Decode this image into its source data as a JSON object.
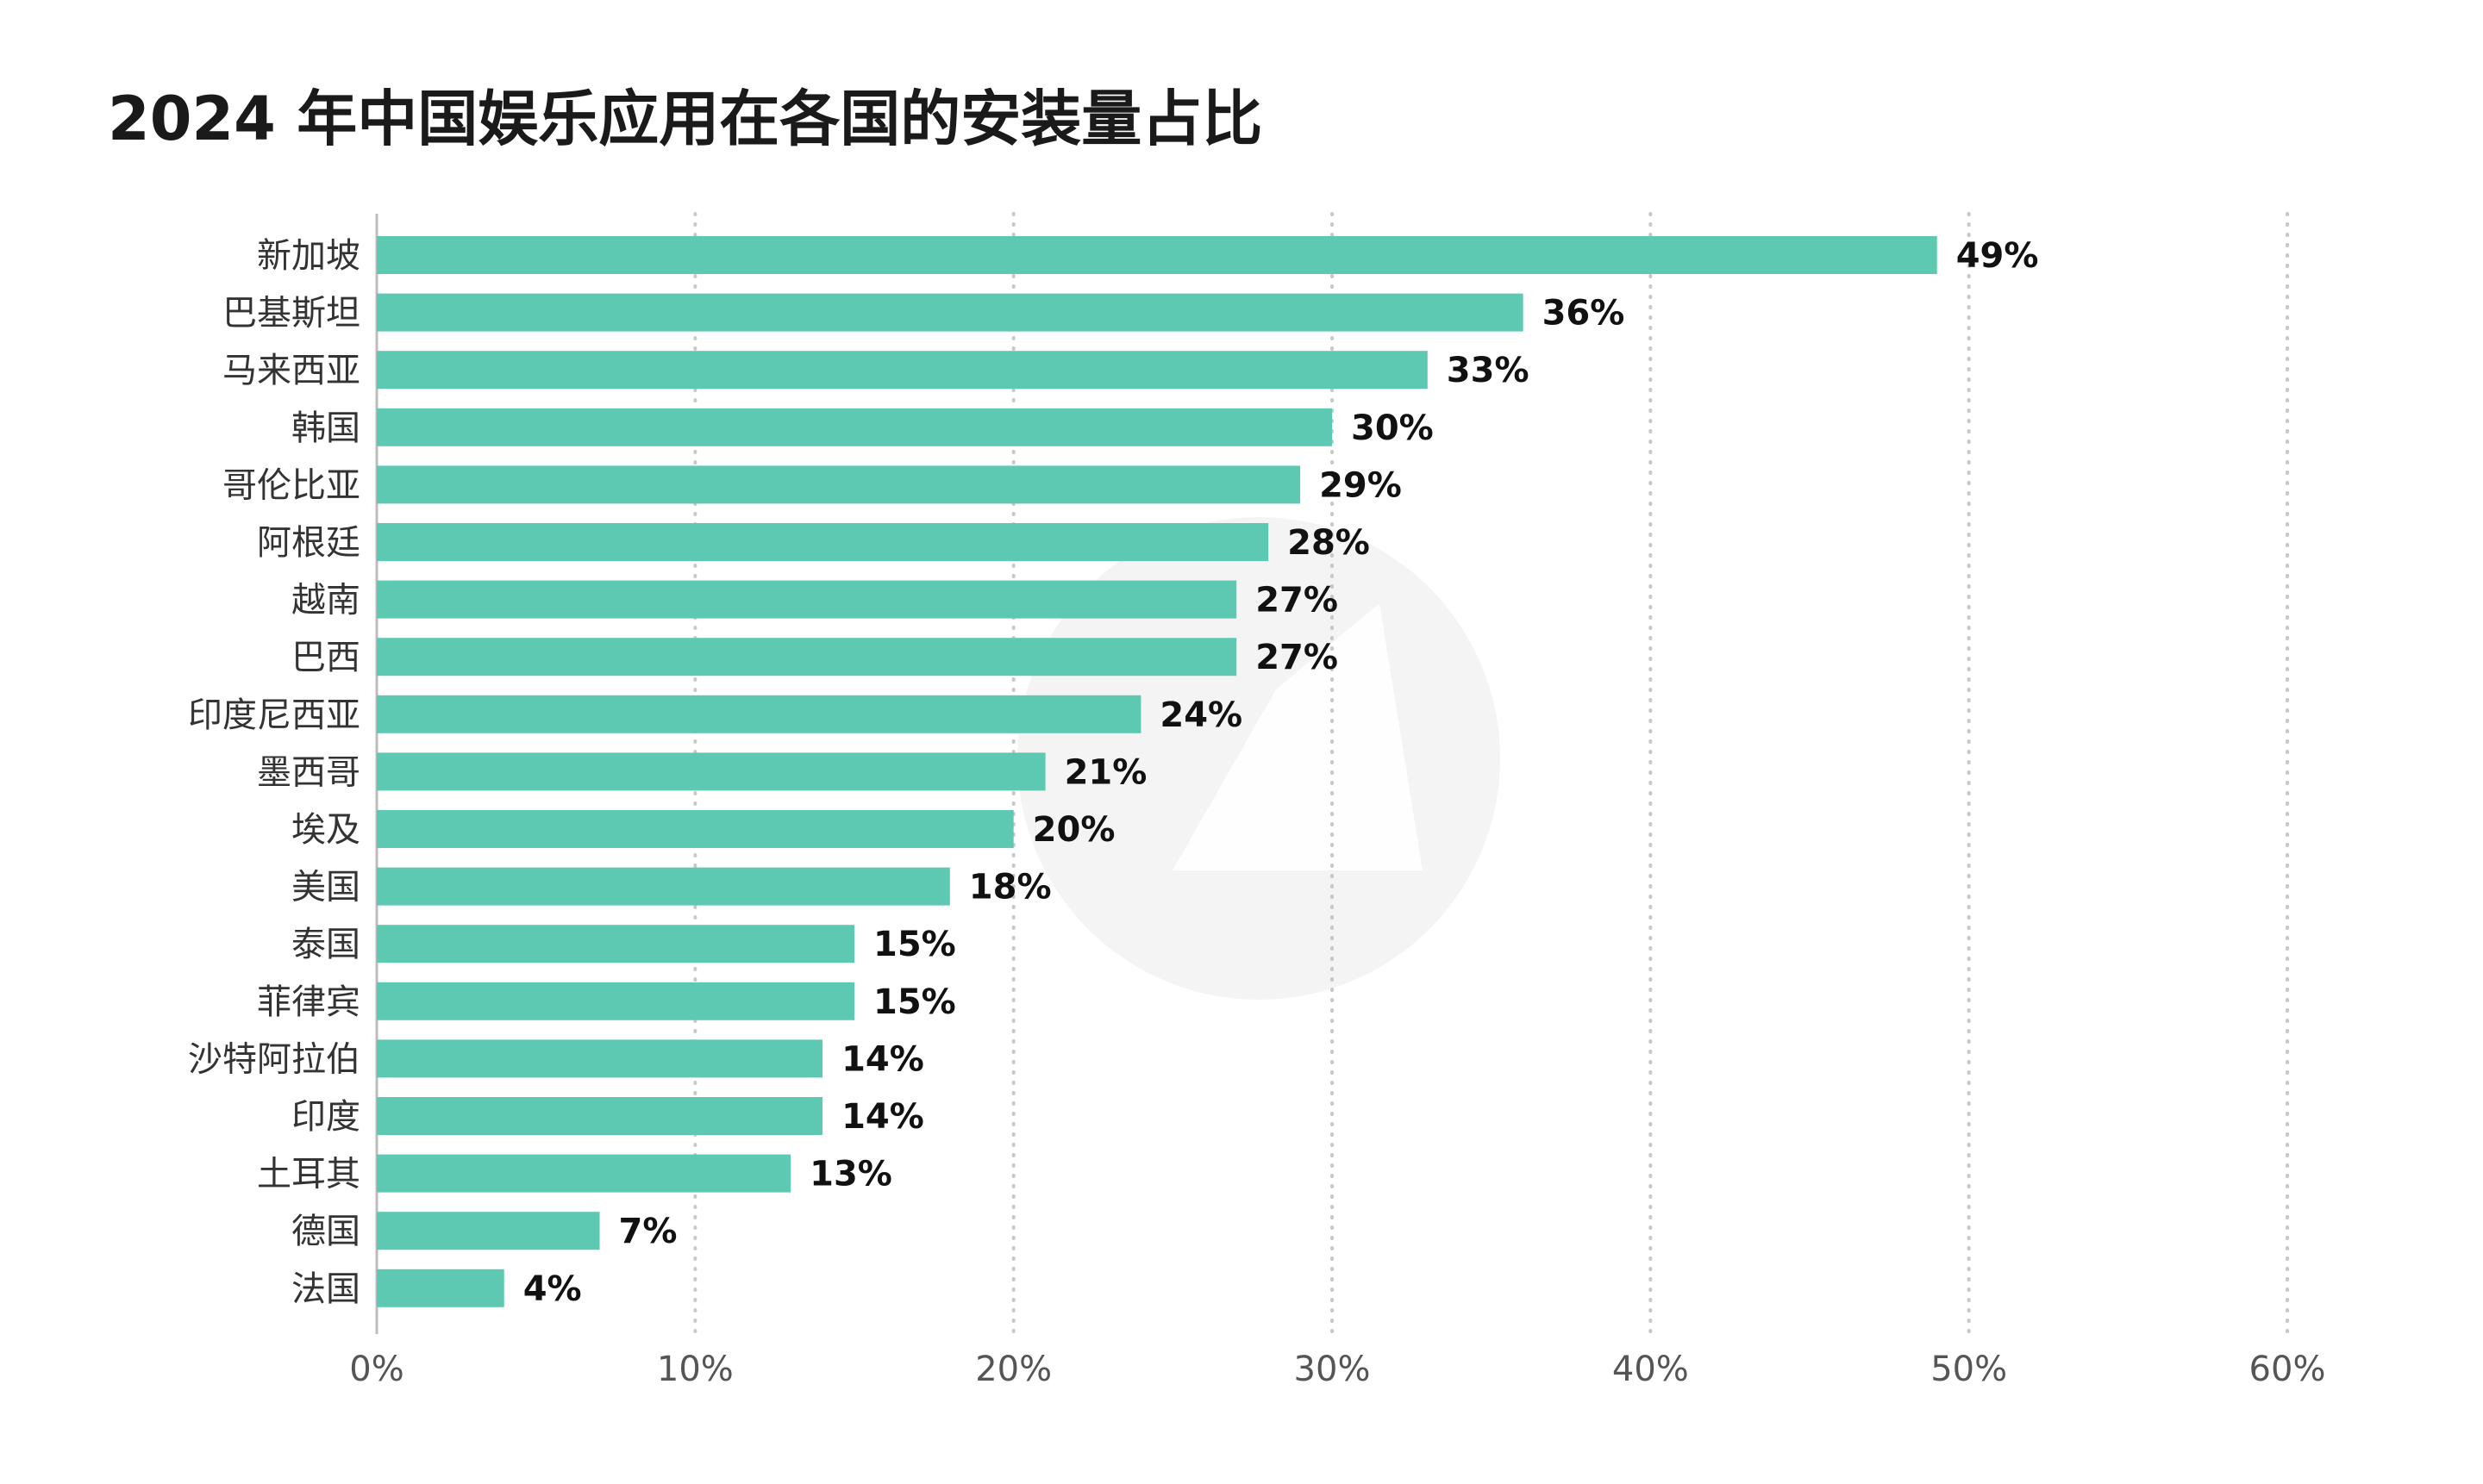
{
  "title": "2024 年中国娱乐应用在各国的安装量占比",
  "colors": {
    "bar": "#5ec9b2",
    "grid": "#c8c8c8",
    "axis": "#bdbdbd",
    "watermark": "#f4f4f4"
  },
  "chart_data": {
    "type": "bar",
    "orientation": "horizontal",
    "title": "2024 年中国娱乐应用在各国的安装量占比",
    "categories": [
      "新加坡",
      "巴基斯坦",
      "马来西亚",
      "韩国",
      "哥伦比亚",
      "阿根廷",
      "越南",
      "巴西",
      "印度尼西亚",
      "墨西哥",
      "埃及",
      "美国",
      "泰国",
      "菲律宾",
      "沙特阿拉伯",
      "印度",
      "土耳其",
      "德国",
      "法国"
    ],
    "values": [
      49,
      36,
      33,
      30,
      29,
      28,
      27,
      27,
      24,
      21,
      20,
      18,
      15,
      15,
      14,
      14,
      13,
      7,
      4
    ],
    "value_labels": [
      "49%",
      "36%",
      "33%",
      "30%",
      "29%",
      "28%",
      "27%",
      "27%",
      "24%",
      "21%",
      "20%",
      "18%",
      "15%",
      "15%",
      "14%",
      "14%",
      "13%",
      "7%",
      "4%"
    ],
    "xlim": [
      0,
      60
    ],
    "xticks": [
      0,
      10,
      20,
      30,
      40,
      50,
      60
    ],
    "xtick_labels": [
      "0%",
      "10%",
      "20%",
      "30%",
      "40%",
      "50%",
      "60%"
    ],
    "grid": "vertical-dotted",
    "legend": "none"
  }
}
